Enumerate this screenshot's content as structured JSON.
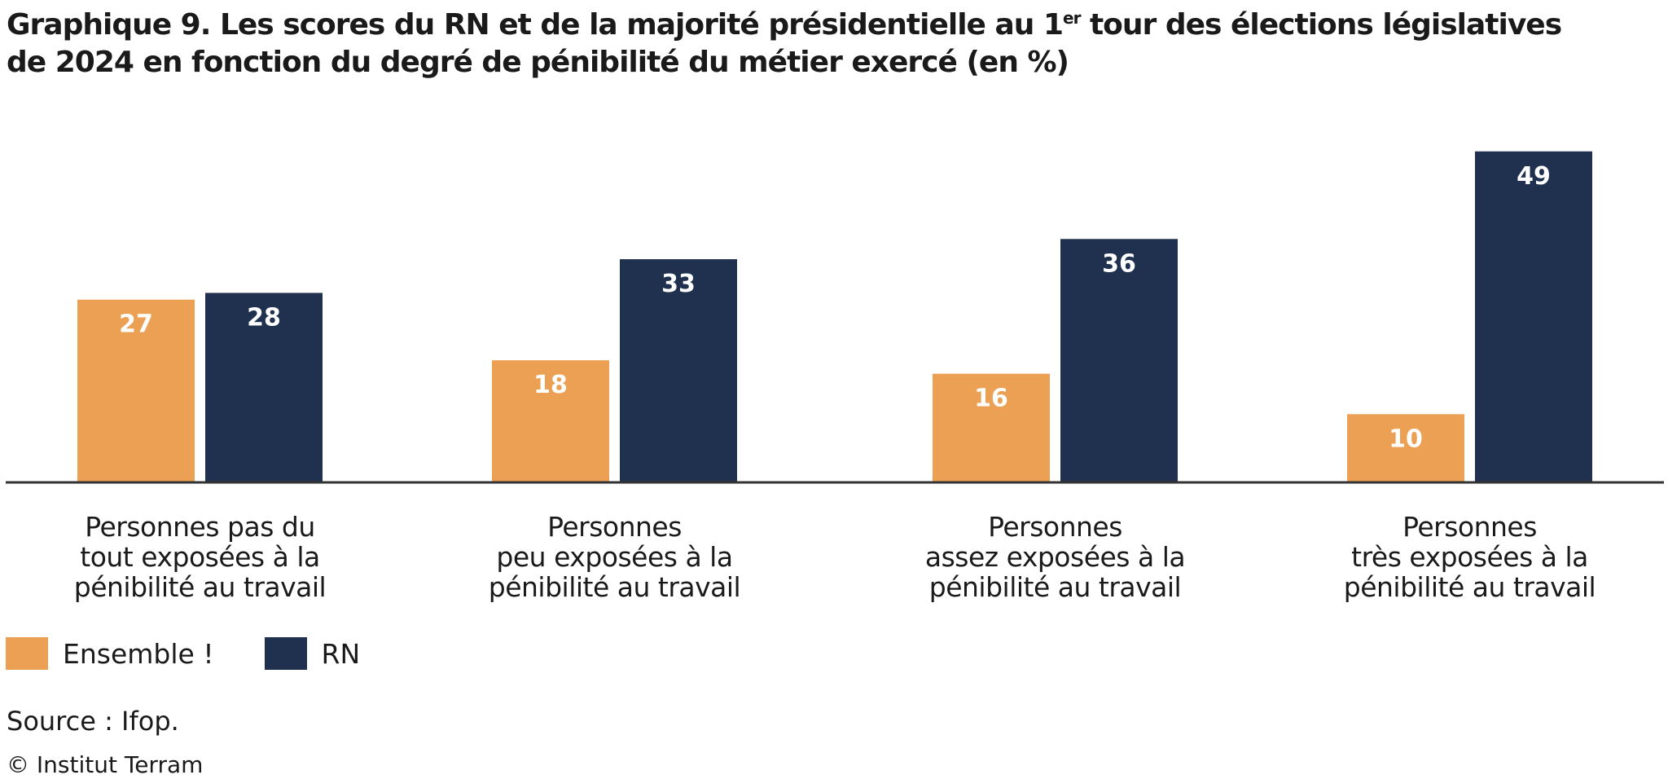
{
  "title": {
    "bold": "Graphique 9.",
    "text_before_sup": " Les scores du RN et de la majorité présidentielle au 1",
    "sup": "er",
    "text_after_sup": " tour des élections législatives",
    "line2": "de 2024 en fonction du degré de pénibilité du métier exercé (en %)"
  },
  "chart_data": {
    "type": "bar",
    "categories": [
      "Personnes pas du tout exposées à la pénibilité au travail",
      "Personnes peu exposées à la pénibilité au travail",
      "Personnes assez exposées à la pénibilité au travail",
      "Personnes très exposées à la pénibilité au travail"
    ],
    "category_lines": [
      [
        "Personnes pas du",
        "tout exposées à la",
        "pénibilité au travail"
      ],
      [
        "Personnes",
        "peu exposées à la",
        "pénibilité au travail"
      ],
      [
        "Personnes",
        "assez exposées à la",
        "pénibilité au travail"
      ],
      [
        "Personnes",
        "très exposées à la",
        "pénibilité au travail"
      ]
    ],
    "series": [
      {
        "name": "Ensemble !",
        "color": "#EBA054",
        "values": [
          27,
          18,
          16,
          10
        ]
      },
      {
        "name": "RN",
        "color": "#1F314F",
        "values": [
          28,
          33,
          36,
          49
        ]
      }
    ],
    "ylim": [
      0,
      50
    ],
    "grid": false,
    "legend": "bottom-left",
    "data_labels": true
  },
  "source": "Source : Ifop.",
  "copyright": "© Institut Terram"
}
